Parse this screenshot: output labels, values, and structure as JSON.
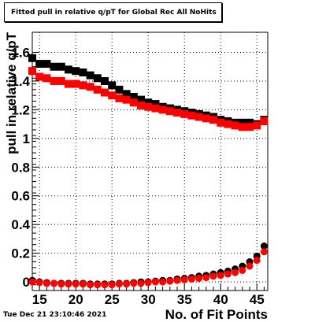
{
  "title": "Fitted pull in relative q/pT for Global Rec All NoHits",
  "timestamp": "Tue Dec 21 23:10:46 2021",
  "chart_data": {
    "type": "scatter",
    "title": "Fitted pull in relative q/pT for Global Rec All NoHits",
    "xlabel": "No. of Fit Points",
    "ylabel": "pull in relative q/pT",
    "xlim": [
      14,
      46.5
    ],
    "ylim": [
      -0.06,
      1.74
    ],
    "grid": true,
    "x_ticks": [
      15,
      20,
      25,
      30,
      35,
      40,
      45
    ],
    "y_ticks": [
      0,
      0.2,
      0.4,
      0.6,
      0.8,
      1,
      1.2,
      1.4,
      1.6
    ],
    "y_tick_labels": [
      "0",
      "0.2",
      "0.4",
      "0.6",
      "0.8",
      "1",
      "1.2",
      "1.4",
      "1.6"
    ],
    "series": [
      {
        "marker": "square",
        "color": "#000000",
        "x": [
          14,
          15,
          16,
          17,
          18,
          19,
          20,
          21,
          22,
          23,
          24,
          25,
          26,
          27,
          28,
          29,
          30,
          31,
          32,
          33,
          34,
          35,
          36,
          37,
          38,
          39,
          40,
          41,
          42,
          43,
          44,
          45,
          46
        ],
        "y": [
          1.56,
          1.52,
          1.52,
          1.5,
          1.5,
          1.48,
          1.47,
          1.46,
          1.44,
          1.42,
          1.4,
          1.37,
          1.34,
          1.31,
          1.29,
          1.27,
          1.25,
          1.24,
          1.22,
          1.21,
          1.2,
          1.19,
          1.18,
          1.17,
          1.16,
          1.15,
          1.13,
          1.12,
          1.11,
          1.11,
          1.11,
          1.1,
          1.13
        ]
      },
      {
        "marker": "square",
        "color": "#ff0000",
        "x": [
          14,
          15,
          16,
          17,
          18,
          19,
          20,
          21,
          22,
          23,
          24,
          25,
          26,
          27,
          28,
          29,
          30,
          31,
          32,
          33,
          34,
          35,
          36,
          37,
          38,
          39,
          40,
          41,
          42,
          43,
          44,
          45,
          46
        ],
        "y": [
          1.47,
          1.43,
          1.42,
          1.4,
          1.4,
          1.38,
          1.38,
          1.37,
          1.36,
          1.34,
          1.32,
          1.3,
          1.28,
          1.27,
          1.25,
          1.23,
          1.22,
          1.21,
          1.2,
          1.19,
          1.18,
          1.17,
          1.16,
          1.15,
          1.14,
          1.13,
          1.11,
          1.1,
          1.09,
          1.08,
          1.08,
          1.09,
          1.12
        ]
      },
      {
        "marker": "circle",
        "color": "#000000",
        "x": [
          14,
          15,
          16,
          17,
          18,
          19,
          20,
          21,
          22,
          23,
          24,
          25,
          26,
          27,
          28,
          29,
          30,
          31,
          32,
          33,
          34,
          35,
          36,
          37,
          38,
          39,
          40,
          41,
          42,
          43,
          44,
          45,
          46
        ],
        "y": [
          0.01,
          0.0,
          -0.005,
          -0.01,
          -0.01,
          -0.01,
          -0.01,
          -0.01,
          -0.015,
          -0.015,
          -0.015,
          -0.015,
          -0.01,
          -0.01,
          -0.005,
          0.0,
          0.0,
          0.005,
          0.01,
          0.01,
          0.02,
          0.025,
          0.03,
          0.04,
          0.045,
          0.055,
          0.065,
          0.075,
          0.09,
          0.11,
          0.14,
          0.18,
          0.25
        ]
      },
      {
        "marker": "circle",
        "color": "#ff0000",
        "x": [
          14,
          15,
          16,
          17,
          18,
          19,
          20,
          21,
          22,
          23,
          24,
          25,
          26,
          27,
          28,
          29,
          30,
          31,
          32,
          33,
          34,
          35,
          36,
          37,
          38,
          39,
          40,
          41,
          42,
          43,
          44,
          45,
          46
        ],
        "y": [
          0.0,
          -0.005,
          -0.01,
          -0.01,
          -0.015,
          -0.015,
          -0.015,
          -0.015,
          -0.02,
          -0.02,
          -0.02,
          -0.02,
          -0.015,
          -0.015,
          -0.01,
          -0.01,
          -0.005,
          0.0,
          0.0,
          0.005,
          0.01,
          0.015,
          0.02,
          0.025,
          0.03,
          0.04,
          0.045,
          0.055,
          0.065,
          0.08,
          0.11,
          0.15,
          0.21
        ]
      }
    ]
  }
}
